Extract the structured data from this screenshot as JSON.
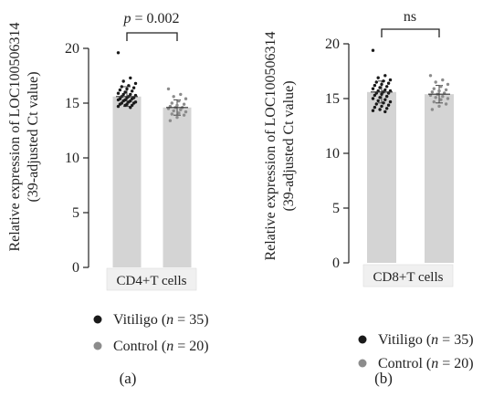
{
  "chart_data": [
    {
      "panel_label": "(a)",
      "type": "bar",
      "ylabel_line1": "Relative expression of LOC100506314",
      "ylabel_line2": "(39-adjusted Ct value)",
      "xlabel": "CD4+T cells",
      "ylim": [
        0,
        20
      ],
      "yticks": [
        "0",
        "5",
        "10",
        "15",
        "20"
      ],
      "significance": {
        "p": "p",
        "rest": " = 0.002"
      },
      "series": [
        {
          "name": "Vitiligo",
          "n": "35",
          "mean": 15.6,
          "sd": 0.9,
          "color": "#1a1a1a",
          "points": [
            19.6,
            17.3,
            17.0,
            16.8,
            16.6,
            16.5,
            16.4,
            16.3,
            16.2,
            16.1,
            16.0,
            15.9,
            15.8,
            15.8,
            15.7,
            15.6,
            15.6,
            15.5,
            15.5,
            15.4,
            15.4,
            15.3,
            15.3,
            15.2,
            15.2,
            15.1,
            15.1,
            15.0,
            15.0,
            14.9,
            14.9,
            14.8,
            14.8,
            14.7,
            14.6
          ]
        },
        {
          "name": "Control",
          "n": "20",
          "mean": 14.6,
          "sd": 0.7,
          "color": "#8c8c8c",
          "points": [
            16.3,
            15.8,
            15.6,
            15.4,
            15.2,
            15.0,
            14.9,
            14.8,
            14.7,
            14.6,
            14.6,
            14.5,
            14.4,
            14.3,
            14.2,
            14.1,
            14.0,
            13.9,
            13.7,
            13.4
          ]
        }
      ]
    },
    {
      "panel_label": "(b)",
      "type": "bar",
      "ylabel_line1": "Relative expression of LOC100506314",
      "ylabel_line2": "(39-adjusted Ct value)",
      "xlabel": "CD8+T cells",
      "ylim": [
        0,
        20
      ],
      "yticks": [
        "0",
        "5",
        "10",
        "15",
        "20"
      ],
      "significance": {
        "p": "",
        "rest": "ns"
      },
      "series": [
        {
          "name": "Vitiligo",
          "n": "35",
          "mean": 15.6,
          "sd": 1.0,
          "color": "#1a1a1a",
          "points": [
            19.4,
            17.1,
            16.9,
            16.7,
            16.6,
            16.5,
            16.4,
            16.3,
            16.2,
            16.1,
            16.0,
            15.9,
            15.8,
            15.7,
            15.7,
            15.6,
            15.5,
            15.5,
            15.4,
            15.3,
            15.2,
            15.1,
            15.0,
            14.9,
            14.8,
            14.7,
            14.6,
            14.5,
            14.4,
            14.3,
            14.2,
            14.1,
            14.0,
            13.9,
            13.8
          ]
        },
        {
          "name": "Control",
          "n": "20",
          "mean": 15.4,
          "sd": 0.8,
          "color": "#8c8c8c",
          "points": [
            17.1,
            16.7,
            16.5,
            16.3,
            16.1,
            15.9,
            15.8,
            15.7,
            15.6,
            15.5,
            15.4,
            15.3,
            15.2,
            15.1,
            15.0,
            14.9,
            14.7,
            14.5,
            14.3,
            14.0
          ]
        }
      ]
    }
  ]
}
